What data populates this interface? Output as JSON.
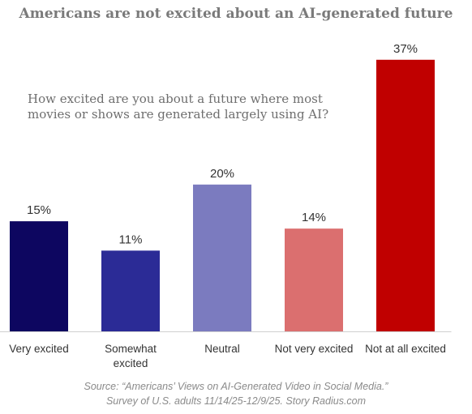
{
  "chart_data": {
    "type": "bar",
    "title": "Americans are not excited about an AI-generated future",
    "subtitle": "How excited are you about a future where most movies or shows are generated largely using AI?",
    "categories": [
      "Very excited",
      "Somewhat excited",
      "Neutral",
      "Not very excited",
      "Not at all excited"
    ],
    "values": [
      15,
      11,
      20,
      14,
      37
    ],
    "data_labels": [
      "15%",
      "11%",
      "20%",
      "14%",
      "37%"
    ],
    "colors": [
      "#0d0660",
      "#2b2b96",
      "#7b7bbf",
      "#db6f6f",
      "#c00000"
    ],
    "xlabel": "",
    "ylabel": "",
    "grid": false,
    "legend": "none"
  },
  "source": {
    "line1": "Source: “Americans’ Views on AI-Generated Video in Social Media.”",
    "line2": "Survey of U.S. adults 11/14/25-12/9/25. Story Radius.com"
  }
}
